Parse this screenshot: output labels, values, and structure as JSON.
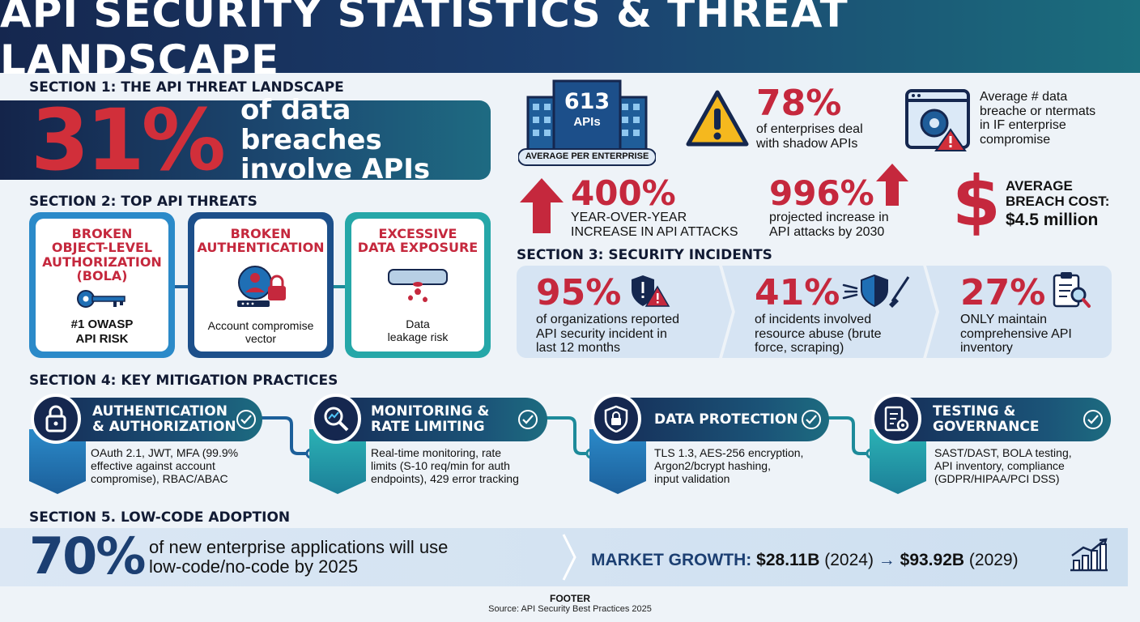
{
  "title": "API SECURITY STATISTICS & THREAT LANDSCAPE",
  "section1": {
    "heading": "SECTION 1: THE API THREAT LANDSCAPE",
    "hero_value": "31%",
    "hero_text_line1": "of data breaches",
    "hero_text_line2": "involve APIs"
  },
  "top_stats": {
    "apis_value": "613",
    "apis_label": "APIs",
    "apis_caption": "AVERAGE PER ENTERPRISE",
    "shadow_value": "78%",
    "shadow_line1": "of enterprises deal",
    "shadow_line2": "with shadow APIs",
    "breach_avg_line1": "Average # data",
    "breach_avg_line2": "breache or ntermats",
    "breach_avg_line3": "in IF enterprise",
    "breach_avg_line4": "compromise",
    "yoy_value": "400%",
    "yoy_line1": "YEAR-OVER-YEAR",
    "yoy_line2": "INCREASE IN API ATTACKS",
    "proj_value": "996%",
    "proj_line1": "projected increase in",
    "proj_line2": "API attacks by 2030",
    "cost_line1": "AVERAGE",
    "cost_line2": "BREACH COST:",
    "cost_value": "$4.5 million"
  },
  "section2": {
    "heading": "SECTION 2: TOP API THREATS",
    "cards": [
      {
        "title_lines": [
          "BROKEN",
          "OBJECT-LEVEL",
          "AUTHORIZATION",
          "(BOLA)"
        ],
        "desc_lines": [
          "#1 OWASP",
          "API RISK"
        ],
        "icon": "key-icon"
      },
      {
        "title_lines": [
          "BROKEN",
          "AUTHENTICATION"
        ],
        "desc_lines": [
          "Account compromise",
          "vector"
        ],
        "icon": "user-lock-icon"
      },
      {
        "title_lines": [
          "EXCESSIVE",
          "DATA EXPOSURE"
        ],
        "desc_lines": [
          "Data",
          "leakage risk"
        ],
        "icon": "leaking-pipe-icon"
      }
    ]
  },
  "section3": {
    "heading": "SECTION 3: SECURITY INCIDENTS",
    "items": [
      {
        "value": "95%",
        "lines": [
          "of organizations reported",
          "API security incident in",
          "last 12 months"
        ],
        "icon": "shield-alert-icon"
      },
      {
        "value": "41%",
        "lines": [
          "of incidents involved",
          "resource abuse (brute",
          "force, scraping)"
        ],
        "icon": "shield-attack-icon"
      },
      {
        "value": "27%",
        "lines": [
          "ONLY maintain",
          "comprehensive API",
          "inventory"
        ],
        "icon": "clipboard-search-icon"
      }
    ]
  },
  "section4": {
    "heading": "SECTION 4: KEY MITIGATION PRACTICES",
    "items": [
      {
        "title_lines": [
          "AUTHENTICATION",
          "& AUTHORIZATION"
        ],
        "desc_lines": [
          "OAuth 2.1, JWT, MFA (99.9%",
          "effective against account",
          "compromise), RBAC/ABAC"
        ],
        "icon": "padlock-icon"
      },
      {
        "title_lines": [
          "MONITORING &",
          "RATE LIMITING"
        ],
        "desc_lines": [
          "Real-time monitoring, rate",
          "limits (S-10 req/min for auth",
          "endpoints), 429 error tracking"
        ],
        "icon": "magnifier-chart-icon"
      },
      {
        "title_lines": [
          "DATA PROTECTION"
        ],
        "desc_lines": [
          "TLS 1.3, AES-256 encryption,",
          "Argon2/bcrypt hashing,",
          "input validation"
        ],
        "icon": "shield-lock-icon"
      },
      {
        "title_lines": [
          "TESTING &",
          "GOVERNANCE"
        ],
        "desc_lines": [
          "SAST/DAST, BOLA testing,",
          "API inventory, compliance",
          "(GDPR/HIPAA/PCI DSS)"
        ],
        "icon": "checklist-gear-icon"
      }
    ]
  },
  "section5": {
    "heading": "SECTION 5. LOW-CODE ADOPTION",
    "value": "70%",
    "line1": "of new enterprise applications will use",
    "line2": "low-code/no-code by 2025",
    "market_label": "MARKET GROWTH:",
    "market_from": "$28.11B",
    "market_from_year": "(2024)",
    "arrow": "→",
    "market_to": "$93.92B",
    "market_to_year": "(2029)"
  },
  "footer": {
    "label": "FOOTER",
    "source": "Source: API Security Best Practices 2025"
  },
  "colors": {
    "accent_red": "#c5283d",
    "navy": "#15274f",
    "teal": "#1d6c80",
    "light_blue_panel": "#d6e4f3"
  }
}
